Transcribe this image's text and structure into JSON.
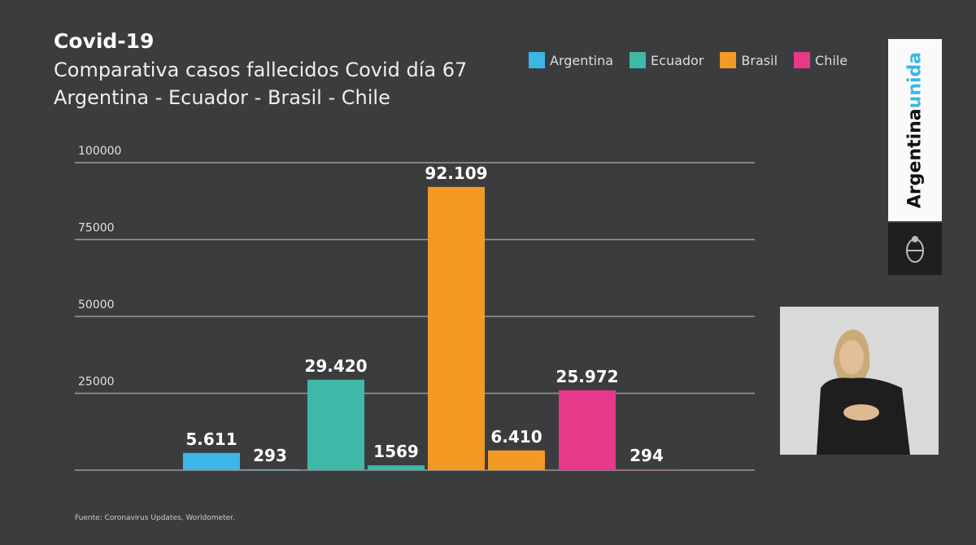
{
  "header": {
    "title": "Covid-19",
    "subtitle_line1": "Comparativa casos fallecidos Covid día 67",
    "subtitle_line2": "Argentina - Ecuador - Brasil -  Chile"
  },
  "footer": {
    "source": "Fuente: Coronavirus Updates, Worldometer."
  },
  "logo": {
    "text_main": "Argentina",
    "text_accent": "unida"
  },
  "chart_data": {
    "type": "bar",
    "title": "Comparativa casos fallecidos Covid día 67",
    "ylim": [
      0,
      100000
    ],
    "yticks": [
      "100000",
      "75000",
      "50000",
      "25000"
    ],
    "ytick_values": [
      100000,
      75000,
      50000,
      25000
    ],
    "grid": true,
    "legend_position": "top-right",
    "legend": [
      {
        "name": "Argentina",
        "color": "#3bb6e6"
      },
      {
        "name": "Ecuador",
        "color": "#3fb8a8"
      },
      {
        "name": "Brasil",
        "color": "#f39a24"
      },
      {
        "name": "Chile",
        "color": "#e8388a"
      }
    ],
    "bars": [
      {
        "country": "Argentina",
        "value": 5611,
        "label": "5.611",
        "color": "#3bb6e6"
      },
      {
        "country": "Argentina",
        "value": 293,
        "label": "293",
        "color": "#3bb6e6"
      },
      {
        "country": "Ecuador",
        "value": 29420,
        "label": "29.420",
        "color": "#3fb8a8"
      },
      {
        "country": "Ecuador",
        "value": 1569,
        "label": "1569",
        "color": "#3fb8a8"
      },
      {
        "country": "Brasil",
        "value": 92109,
        "label": "92.109",
        "color": "#f39a24"
      },
      {
        "country": "Brasil",
        "value": 6410,
        "label": "6.410",
        "color": "#f39a24"
      },
      {
        "country": "Chile",
        "value": 25972,
        "label": "25.972",
        "color": "#e8388a"
      },
      {
        "country": "Chile",
        "value": 294,
        "label": "294",
        "color": "#e8388a"
      }
    ]
  }
}
